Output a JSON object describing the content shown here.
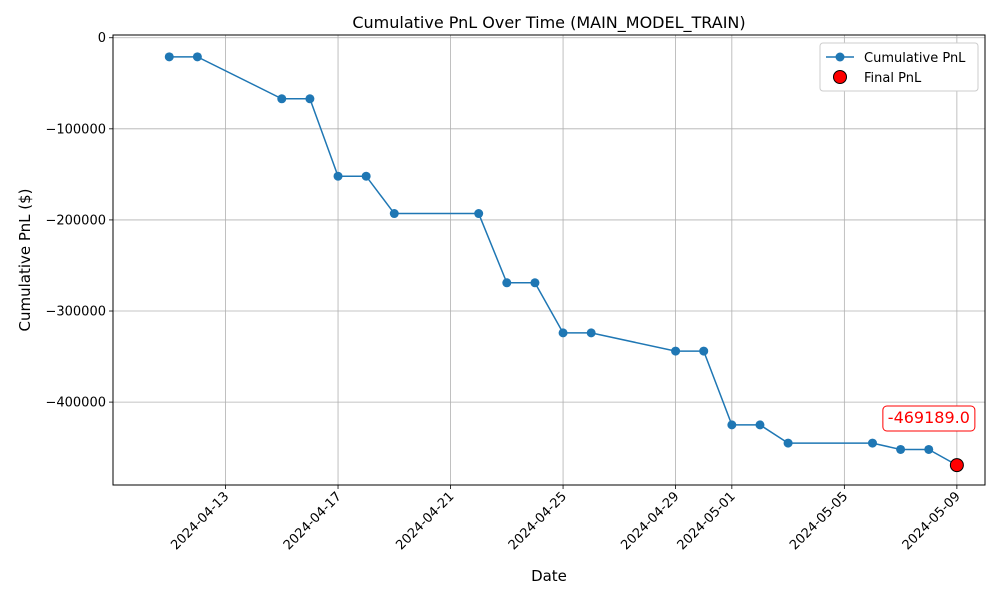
{
  "chart_data": {
    "type": "line",
    "title": "Cumulative PnL Over Time (MAIN_MODEL_TRAIN)",
    "xlabel": "Date",
    "ylabel": "Cumulative PnL ($)",
    "xlim": [
      "2024-04-09",
      "2024-05-10"
    ],
    "ylim": [
      -491000,
      3000
    ],
    "grid": true,
    "legend_position": "top-right",
    "x_ticks": [
      "2024-04-13",
      "2024-04-17",
      "2024-04-21",
      "2024-04-25",
      "2024-04-29",
      "2024-05-01",
      "2024-05-05",
      "2024-05-09"
    ],
    "y_ticks": [
      0,
      -100000,
      -200000,
      -300000,
      -400000
    ],
    "y_tick_labels": [
      "0",
      "−100000",
      "−200000",
      "−300000",
      "−400000"
    ],
    "series": [
      {
        "name": "Cumulative PnL",
        "color": "#1f77b4",
        "marker": "circle",
        "x": [
          "2024-04-11",
          "2024-04-12",
          "2024-04-15",
          "2024-04-16",
          "2024-04-17",
          "2024-04-18",
          "2024-04-19",
          "2024-04-22",
          "2024-04-23",
          "2024-04-24",
          "2024-04-25",
          "2024-04-26",
          "2024-04-29",
          "2024-04-30",
          "2024-05-01",
          "2024-05-02",
          "2024-05-03",
          "2024-05-06",
          "2024-05-07",
          "2024-05-08",
          "2024-05-09"
        ],
        "y": [
          -21000,
          -21000,
          -67000,
          -67000,
          -152000,
          -152000,
          -193000,
          -193000,
          -269000,
          -269000,
          -324000,
          -324000,
          -344000,
          -344000,
          -425000,
          -425000,
          -445000,
          -445000,
          -452000,
          -452000,
          -469189
        ]
      },
      {
        "name": "Final PnL",
        "color": "#ff0000",
        "marker": "circle-large",
        "x": [
          "2024-05-09"
        ],
        "y": [
          -469189
        ]
      }
    ],
    "annotations": [
      {
        "text": "-469189.0",
        "x": "2024-05-09",
        "y": -469189,
        "color": "#ff0000"
      }
    ]
  }
}
